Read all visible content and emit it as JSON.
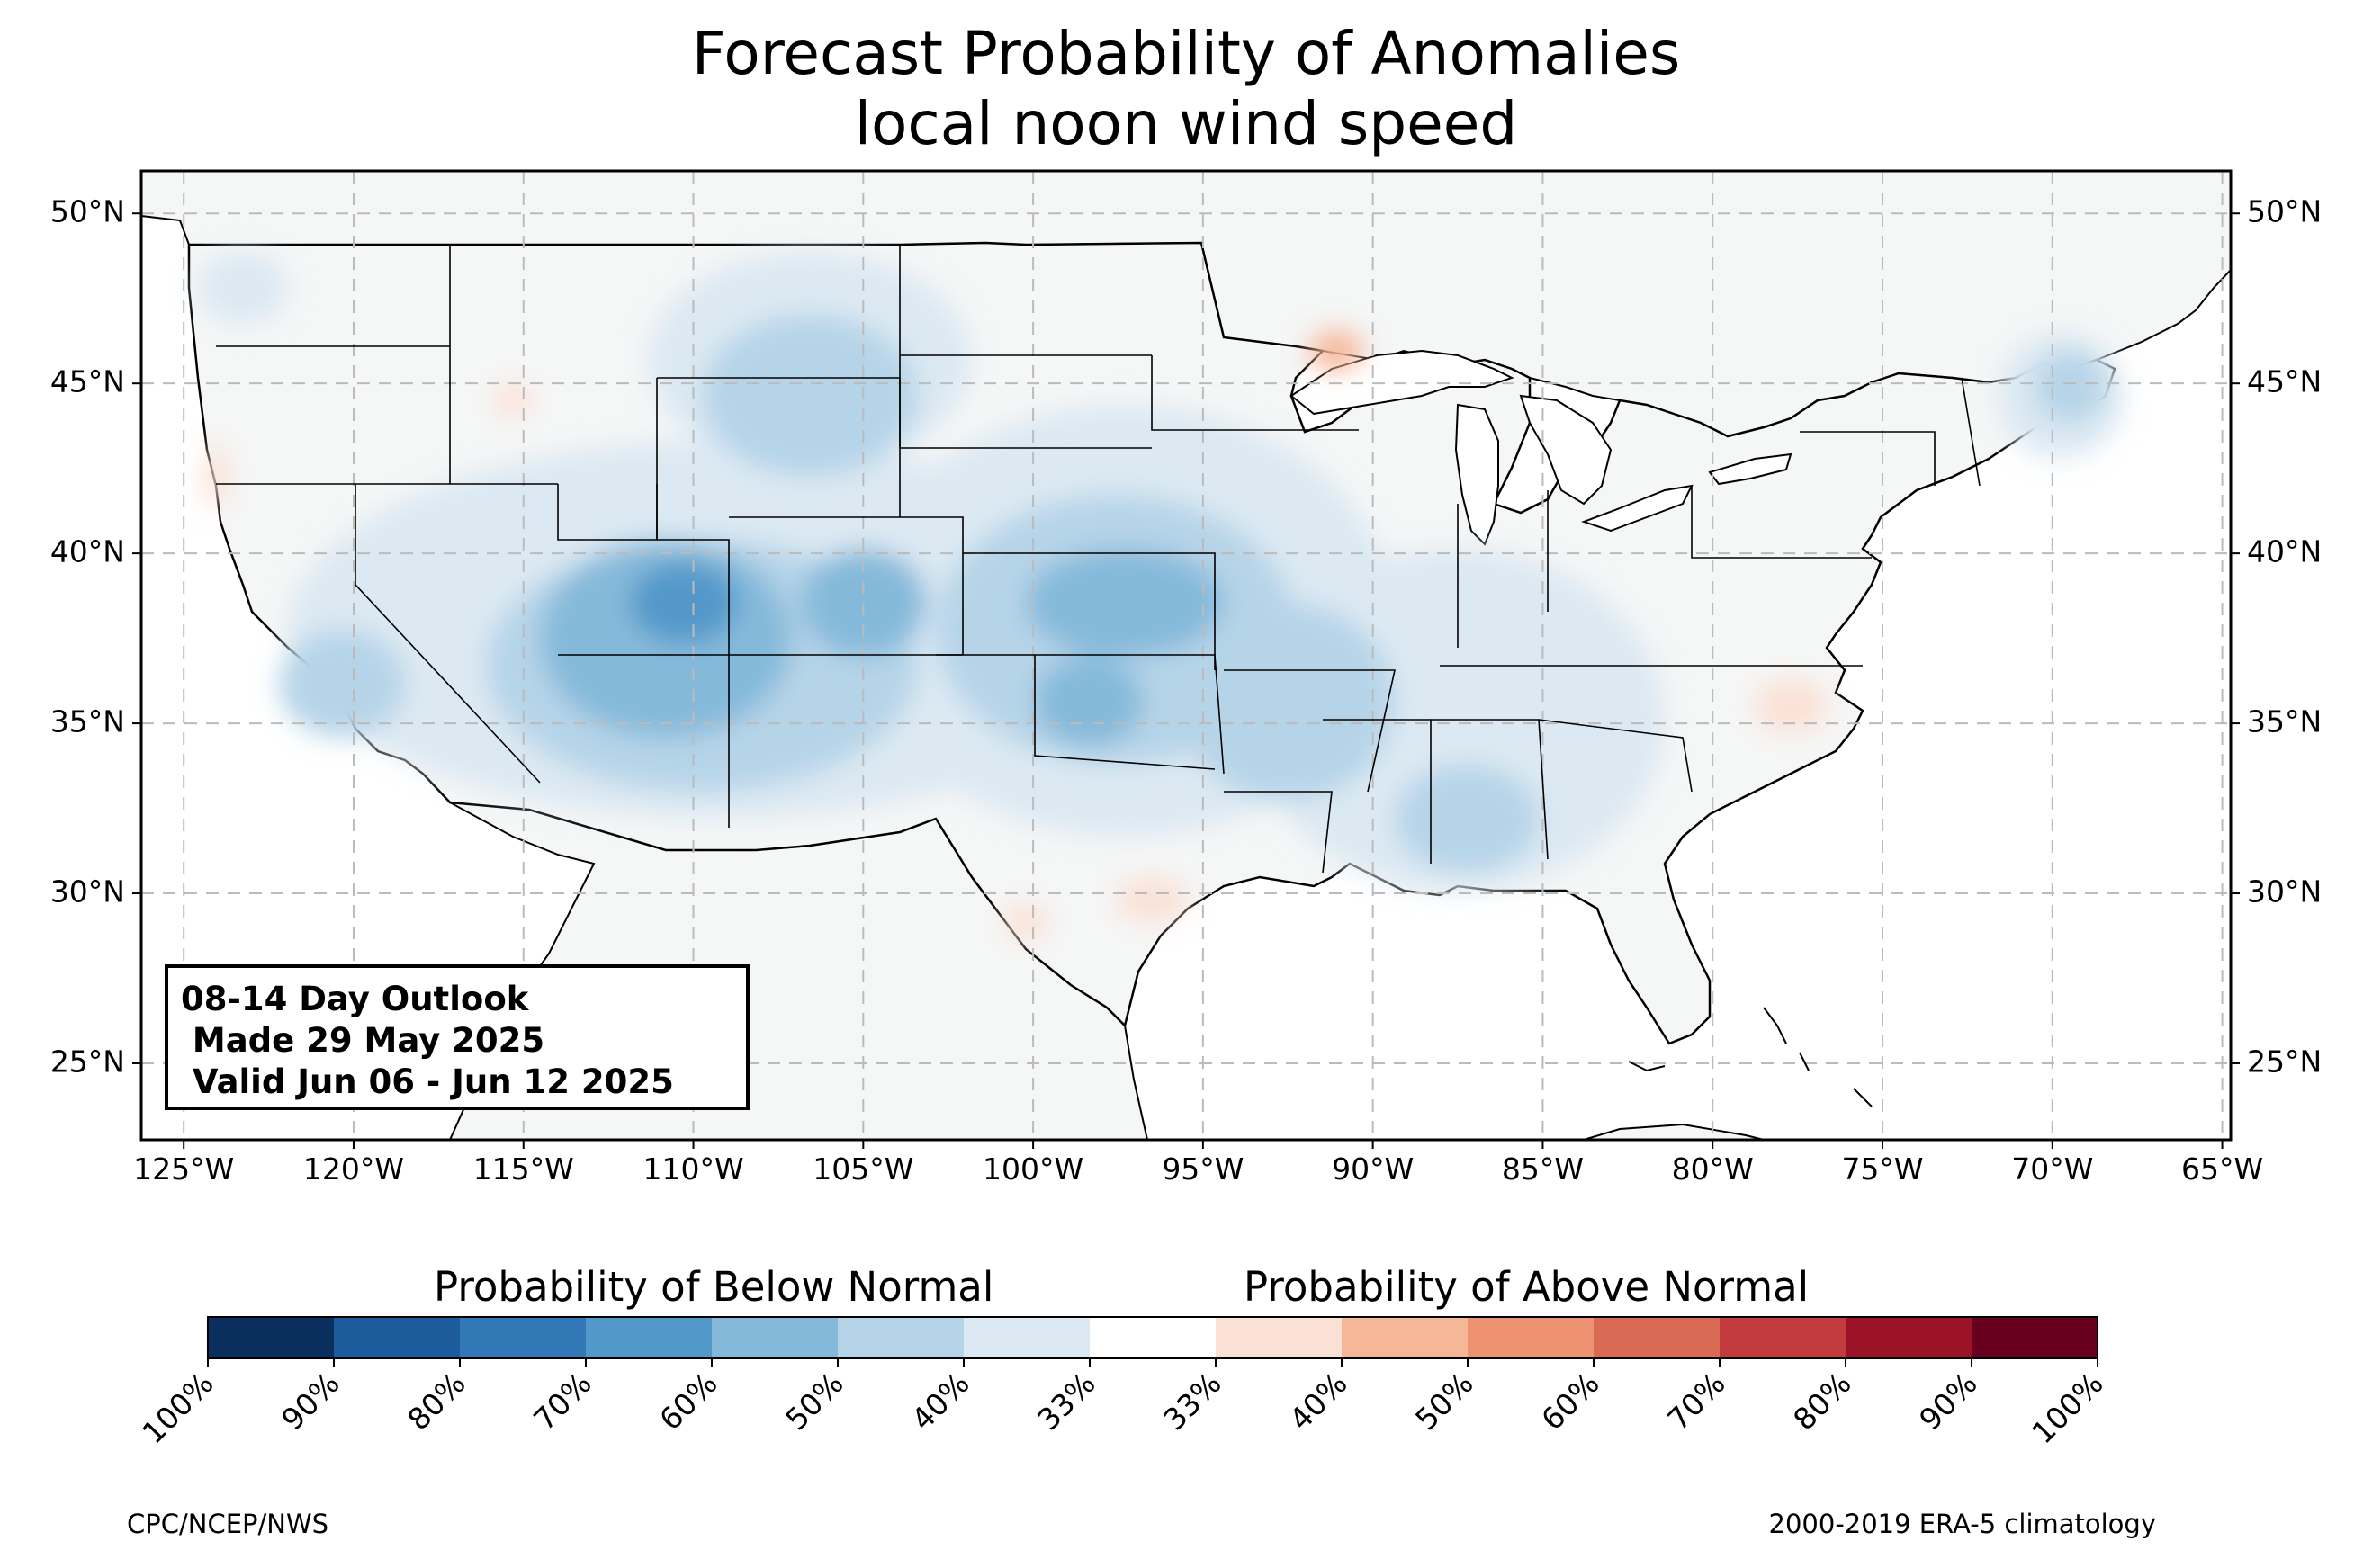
{
  "title": {
    "line1": "Forecast Probability of Anomalies",
    "line2": "local noon wind speed"
  },
  "map": {
    "projection": "plate-carree",
    "extent": {
      "lon_min": -126.25,
      "lon_max": -64.75,
      "lat_min": 22.75,
      "lat_max": 51.25
    },
    "lat_ticks": [
      50,
      45,
      40,
      35,
      30,
      25
    ],
    "lat_tick_labels": [
      "50°N",
      "45°N",
      "40°N",
      "35°N",
      "30°N",
      "25°N"
    ],
    "lon_ticks": [
      -125,
      -120,
      -115,
      -110,
      -105,
      -100,
      -95,
      -90,
      -85,
      -80,
      -75,
      -70,
      -65
    ],
    "lon_tick_labels": [
      "125°W",
      "120°W",
      "115°W",
      "110°W",
      "105°W",
      "100°W",
      "95°W",
      "90°W",
      "85°W",
      "80°W",
      "75°W",
      "70°W",
      "65°W"
    ],
    "gridlines": true,
    "land_color": "#f5f6f6",
    "ocean_color": "#ffffff",
    "below_normal_areas": [
      {
        "region": "Four Corners / Colorado Plateau",
        "lon": -109.5,
        "lat": 38.2,
        "prob": "60-70%"
      },
      {
        "region": "Northern Arizona",
        "lon": -111.0,
        "lat": 35.8,
        "prob": "50-60%"
      },
      {
        "region": "Colorado",
        "lon": -105.2,
        "lat": 38.5,
        "prob": "50-60%"
      },
      {
        "region": "Kansas",
        "lon": -97.5,
        "lat": 38.6,
        "prob": "50-60%"
      },
      {
        "region": "Oklahoma",
        "lon": -98.5,
        "lat": 35.3,
        "prob": "50-60%"
      },
      {
        "region": "Wyoming / Montana",
        "lon": -106.0,
        "lat": 45.0,
        "prob": "40-50%"
      },
      {
        "region": "Southern California",
        "lon": -117.5,
        "lat": 35.3,
        "prob": "40-50%"
      },
      {
        "region": "Arkansas / Missouri",
        "lon": -92.5,
        "lat": 36.0,
        "prob": "40-50%"
      },
      {
        "region": "Northern Maine",
        "lon": -69.0,
        "lat": 45.5,
        "prob": "40-50%"
      },
      {
        "region": "Alabama / Mississippi",
        "lon": -87.5,
        "lat": 32.8,
        "prob": "40-50%"
      }
    ],
    "above_normal_areas": [
      {
        "region": "Northern Wisconsin",
        "lon": -91.0,
        "lat": 45.8,
        "prob": "40-50%"
      },
      {
        "region": "Eastern North Carolina",
        "lon": -77.5,
        "lat": 35.5,
        "prob": "33-40%"
      },
      {
        "region": "Southeast Texas coast",
        "lon": -96.0,
        "lat": 29.5,
        "prob": "33-40%"
      },
      {
        "region": "Idaho",
        "lon": -114.5,
        "lat": 44.6,
        "prob": "33-40%"
      },
      {
        "region": "Northern California coast",
        "lon": -124.0,
        "lat": 42.0,
        "prob": "33-40%"
      },
      {
        "region": "South Texas",
        "lon": -99.5,
        "lat": 29.0,
        "prob": "33-40%"
      }
    ]
  },
  "info_box": {
    "line1": "08-14 Day Outlook",
    "line2": " Made 29 May 2025",
    "line3": " Valid Jun 06 - Jun 12 2025"
  },
  "legend": {
    "below_label": "Probability of Below Normal",
    "above_label": "Probability of Above Normal",
    "colors": [
      "#0a2f5e",
      "#1c5b9c",
      "#3278b7",
      "#5298c9",
      "#85b9da",
      "#b6d4e8",
      "#dce9f3",
      "#ffffff",
      "#fbe1d5",
      "#f6b799",
      "#ed9372",
      "#d96b54",
      "#c13a3d",
      "#9a1327",
      "#67001f"
    ],
    "tick_labels": [
      "100%",
      "90%",
      "80%",
      "70%",
      "60%",
      "50%",
      "40%",
      "33%",
      "33%",
      "40%",
      "50%",
      "60%",
      "70%",
      "80%",
      "90%",
      "100%"
    ]
  },
  "footer": {
    "left": "CPC/NCEP/NWS",
    "right": "2000-2019 ERA-5 climatology"
  }
}
